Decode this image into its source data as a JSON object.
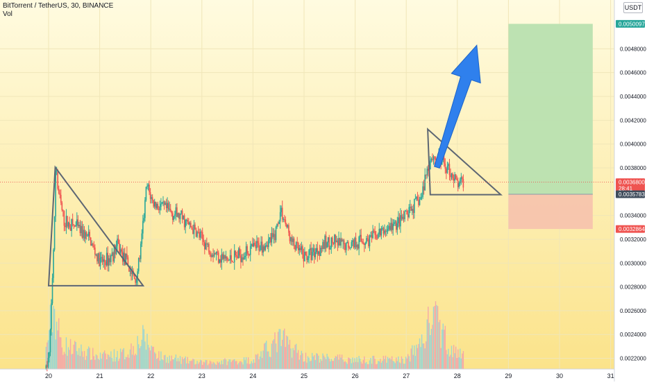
{
  "header": {
    "title": "BitTorrent / TetherUS, 30, BINANCE",
    "volume_label": "Vol"
  },
  "currency_button": "USDT",
  "colors": {
    "up": "#26a69a",
    "down": "#ef5350",
    "volume_up": "#9fd6cf",
    "volume_down": "#f4a9a7",
    "pattern_line": "#5d6673",
    "arrow": "#2f80ed",
    "target_zone": "#b9e0b0",
    "stop_zone": "#f7c4ad",
    "background_top": "#fffbe0",
    "background_bottom": "#fbe38a",
    "current_price_label": "#ef5350",
    "entry_label": "#3f4c5c",
    "target_label": "#26a69a",
    "stop_label": "#ef5350"
  },
  "chart_data": {
    "type": "candlestick",
    "symbol": "BitTorrent / TetherUS",
    "interval": "30",
    "exchange": "BINANCE",
    "x_tick_labels": [
      "20",
      "21",
      "22",
      "23",
      "24",
      "25",
      "26",
      "27",
      "28",
      "29",
      "30",
      "31"
    ],
    "y_tick_labels": [
      "0.0048000",
      "0.0046000",
      "0.0044000",
      "0.0042000",
      "0.0040000",
      "0.0038000",
      "0.0034000",
      "0.0032000",
      "0.0030000",
      "0.0028000",
      "0.0026000",
      "0.0024000",
      "0.0022000"
    ],
    "ylim": [
      0.00211,
      0.00521
    ],
    "current_price": {
      "label": "0.0036800",
      "countdown": "28:41"
    },
    "entry_label": "0.0035783",
    "target_label": "0.0050097",
    "stop_label": "0.0032864",
    "position": {
      "entry": 0.0035783,
      "target": 0.0050097,
      "stop": 0.0032864,
      "start_day": 29.0,
      "end_day": 30.65
    },
    "triangles": [
      {
        "points": [
          [
            20.13,
            0.003805
          ],
          [
            21.85,
            0.00281
          ],
          [
            20.0,
            0.00281
          ]
        ]
      },
      {
        "points": [
          [
            27.42,
            0.004125
          ],
          [
            28.85,
            0.003575
          ],
          [
            27.47,
            0.003575
          ]
        ]
      }
    ],
    "arrow": {
      "from": [
        27.6,
        0.003805
      ],
      "to": [
        28.38,
        0.00483
      ]
    },
    "candle_keypoints": [
      [
        19.95,
        0.00211
      ],
      [
        20.02,
        0.00224
      ],
      [
        20.08,
        0.00295
      ],
      [
        20.15,
        0.0037
      ],
      [
        20.3,
        0.00335
      ],
      [
        20.55,
        0.0033
      ],
      [
        20.8,
        0.0032
      ],
      [
        21.0,
        0.003
      ],
      [
        21.2,
        0.00304
      ],
      [
        21.35,
        0.00315
      ],
      [
        21.55,
        0.00298
      ],
      [
        21.7,
        0.00285
      ],
      [
        21.8,
        0.0031
      ],
      [
        21.92,
        0.00365
      ],
      [
        22.05,
        0.0035
      ],
      [
        22.3,
        0.00345
      ],
      [
        22.6,
        0.00338
      ],
      [
        22.9,
        0.00325
      ],
      [
        23.2,
        0.0031
      ],
      [
        23.5,
        0.00302
      ],
      [
        23.7,
        0.00306
      ],
      [
        24.0,
        0.00312
      ],
      [
        24.2,
        0.00316
      ],
      [
        24.4,
        0.0032
      ],
      [
        24.55,
        0.00345
      ],
      [
        24.75,
        0.00318
      ],
      [
        25.0,
        0.00305
      ],
      [
        25.2,
        0.0031
      ],
      [
        25.5,
        0.00318
      ],
      [
        25.8,
        0.00314
      ],
      [
        26.0,
        0.00318
      ],
      [
        26.3,
        0.0032
      ],
      [
        26.6,
        0.00328
      ],
      [
        26.9,
        0.00335
      ],
      [
        27.0,
        0.0034
      ],
      [
        27.15,
        0.00348
      ],
      [
        27.3,
        0.00355
      ],
      [
        27.38,
        0.00375
      ],
      [
        27.5,
        0.0039
      ],
      [
        27.7,
        0.00385
      ],
      [
        27.85,
        0.00378
      ],
      [
        28.0,
        0.00366
      ],
      [
        28.12,
        0.00368
      ]
    ],
    "volume_keypoints": [
      [
        19.95,
        0.3
      ],
      [
        20.02,
        0.7
      ],
      [
        20.1,
        1.0
      ],
      [
        20.25,
        0.4
      ],
      [
        21.0,
        0.2
      ],
      [
        21.5,
        0.25
      ],
      [
        21.85,
        0.5
      ],
      [
        22.2,
        0.2
      ],
      [
        23.0,
        0.1
      ],
      [
        24.0,
        0.15
      ],
      [
        24.55,
        0.5
      ],
      [
        25.0,
        0.2
      ],
      [
        26.0,
        0.15
      ],
      [
        27.0,
        0.15
      ],
      [
        27.35,
        0.5
      ],
      [
        27.5,
        0.9
      ],
      [
        27.9,
        0.3
      ],
      [
        28.12,
        0.2
      ]
    ]
  }
}
